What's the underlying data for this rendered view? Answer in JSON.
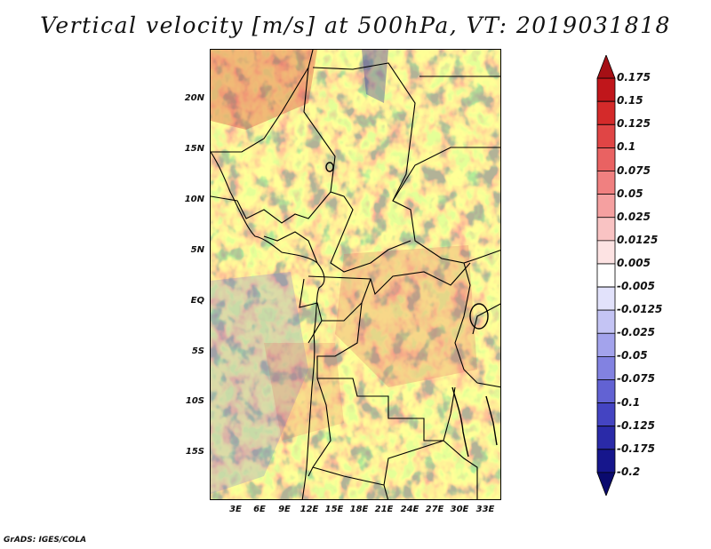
{
  "title": "Vertical velocity [m/s] at 500hPa, VT: 2019031818",
  "credit": "GrADS: IGES/COLA",
  "lat_labels": [
    "20N",
    "15N",
    "10N",
    "5N",
    "EQ",
    "5S",
    "10S",
    "15S"
  ],
  "lon_labels": [
    "3E",
    "6E",
    "9E",
    "12E",
    "15E",
    "18E",
    "21E",
    "24E",
    "27E",
    "30E",
    "33E"
  ],
  "colorbar": {
    "labels": [
      "0.175",
      "0.15",
      "0.125",
      "0.1",
      "0.075",
      "0.05",
      "0.025",
      "0.0125",
      "0.005",
      "-0.005",
      "-0.0125",
      "-0.025",
      "-0.05",
      "-0.075",
      "-0.1",
      "-0.125",
      "-0.175",
      "-0.2"
    ],
    "colors": [
      "#a50f15",
      "#c0161b",
      "#d42a2a",
      "#e04545",
      "#e96262",
      "#f08080",
      "#f5a0a0",
      "#f9c3c3",
      "#fde3e3",
      "#ffffff",
      "#e2e2fb",
      "#c4c4f4",
      "#a3a3ec",
      "#8282e1",
      "#6262d3",
      "#4444c2",
      "#2a2aa8",
      "#16168c",
      "#0a0a6e"
    ]
  }
}
